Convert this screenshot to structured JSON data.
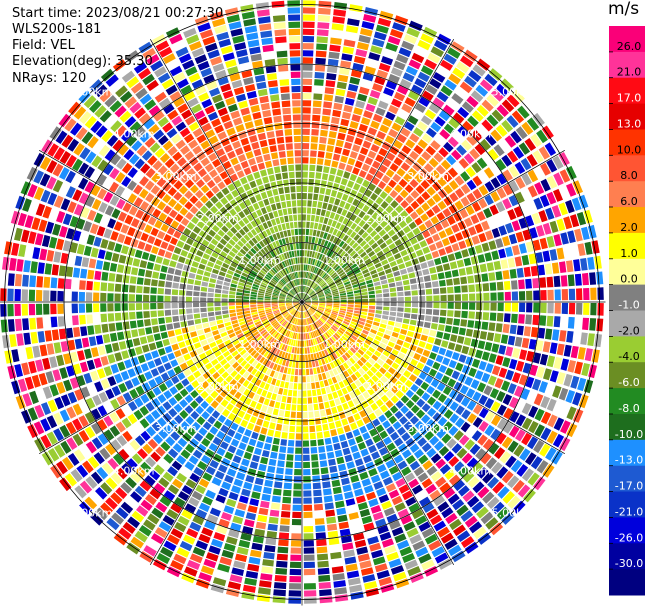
{
  "header": {
    "start_time": "Start time: 2023/08/21 00:27:30",
    "instrument": "WLS200s-181",
    "field": "Field: VEL",
    "elevation": "Elevation(deg): 35.30",
    "nrays": "NRays: 120"
  },
  "colorbar": {
    "title": "m/s",
    "tick_labels": [
      "26.0",
      "21.0",
      "17.0",
      "13.0",
      "10.0",
      "8.0",
      "6.0",
      "2.0",
      "1.0",
      "0.0",
      "-1.0",
      "-2.0",
      "-4.0",
      "-6.0",
      "-8.0",
      "-10.0",
      "-13.0",
      "-17.0",
      "-21.0",
      "-26.0",
      "-30.0"
    ],
    "colors": [
      "#fa0078",
      "#ff3399",
      "#ff0a14",
      "#e60000",
      "#ff3300",
      "#ff5533",
      "#ff7f50",
      "#ffa500",
      "#ffff00",
      "#ffff99",
      "#808080",
      "#a9a9a9",
      "#9acd32",
      "#6b8e23",
      "#228b22",
      "#1e6e1e",
      "#1e90ff",
      "#1e5ad2",
      "#0a32c8",
      "#0000dc",
      "#0000a0",
      "#000080"
    ]
  },
  "chart_data": {
    "type": "heatmap",
    "projection": "PPI (polar)",
    "field": "VEL",
    "units": "m/s",
    "nrays": 120,
    "elevation_deg": 35.3,
    "range_ring_labels": [
      "1.00km",
      "2.00km",
      "3.00km",
      "4.00km",
      "5.00km"
    ],
    "range_rings_km": [
      1,
      2,
      3,
      4,
      5
    ],
    "spokes_deg": [
      0,
      30,
      60,
      90,
      120,
      150,
      180,
      210,
      240,
      270,
      300,
      330
    ],
    "color_scale_range": [
      -30,
      30
    ]
  }
}
